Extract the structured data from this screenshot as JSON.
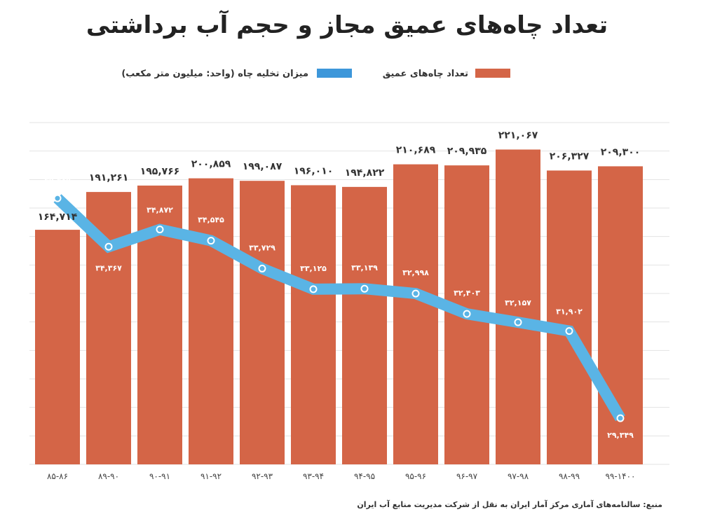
{
  "chart_data": {
    "type": "bar+line",
    "title": "تعداد چاه‌های عمیق مجاز و حجم آب برداشتی",
    "categories": [
      "۸۵-۸۶",
      "۸۹-۹۰",
      "۹۰-۹۱",
      "۹۱-۹۲",
      "۹۲-۹۳",
      "۹۳-۹۴",
      "۹۴-۹۵",
      "۹۵-۹۶",
      "۹۶-۹۷",
      "۹۷-۹۸",
      "۹۸-۹۹",
      "۹۹-۱۴۰۰"
    ],
    "series": [
      {
        "name": "تعداد چاه‌های عمیق",
        "type": "bar",
        "color": "#d46547",
        "values": [
          164714,
          191261,
          195766,
          200859,
          199087,
          196010,
          194822,
          210689,
          209935,
          221067,
          206327,
          209300
        ]
      },
      {
        "name": "میزان تخلیه چاه (واحد: میلیون متر مکعب)",
        "type": "line",
        "color": "#5ab4e5",
        "values": [
          35785,
          34367,
          34872,
          34545,
          33729,
          33125,
          33139,
          32998,
          32403,
          32157,
          31902,
          29349
        ]
      }
    ],
    "ylim": [
      0,
      240000
    ],
    "y2lim": [
      28000,
      38000
    ],
    "grid": true,
    "legend_placement": "top",
    "source": "منبع: سالنامه‌های آماری  مرکز آمار ایران به نقل از شرکت مدیریت منابع آب ایران"
  }
}
